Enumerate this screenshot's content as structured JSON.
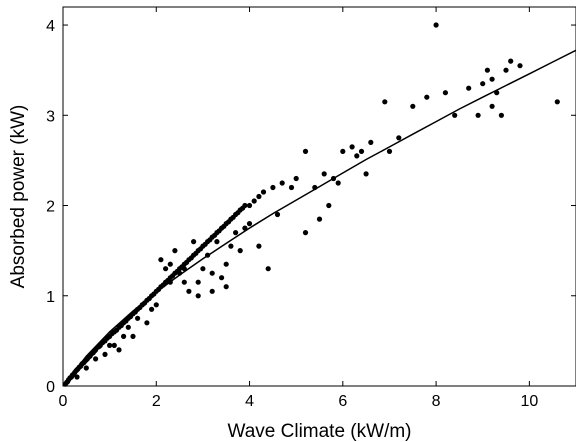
{
  "chart_data": {
    "type": "scatter",
    "title": "",
    "xlabel": "Wave Climate (kW/m)",
    "ylabel": "Absorbed power (kW)",
    "xlim": [
      0,
      11
    ],
    "ylim": [
      0,
      4.2
    ],
    "xticks": [
      0,
      2,
      4,
      6,
      8,
      10
    ],
    "yticks": [
      0,
      1,
      2,
      3,
      4
    ],
    "grid": false,
    "legend": "none",
    "colors": {
      "points": "#000000",
      "fit": "#000000",
      "axes": "#000000"
    },
    "series": [
      {
        "kind": "points",
        "x": [
          0.05,
          0.08,
          0.1,
          0.12,
          0.15,
          0.18,
          0.2,
          0.22,
          0.25,
          0.28,
          0.3,
          0.32,
          0.35,
          0.38,
          0.4,
          0.42,
          0.45,
          0.48,
          0.5,
          0.52,
          0.55,
          0.58,
          0.6,
          0.62,
          0.65,
          0.68,
          0.7,
          0.75,
          0.78,
          0.8,
          0.85,
          0.9,
          0.95,
          1.0,
          1.05,
          1.1,
          1.15,
          1.2,
          1.25,
          1.3,
          1.35,
          1.4,
          1.45,
          1.5,
          1.55,
          1.6,
          1.65,
          1.7,
          1.75,
          1.8,
          1.85,
          1.9,
          1.95,
          2.0,
          2.05,
          2.1,
          2.15,
          2.2,
          2.25,
          2.3,
          2.35,
          2.4,
          2.45,
          2.5,
          2.55,
          2.6,
          2.65,
          2.7,
          2.75,
          2.8,
          2.85,
          2.9,
          2.95,
          3.0,
          3.05,
          3.1,
          3.15,
          3.2,
          3.25,
          3.3,
          3.35,
          3.4,
          3.45,
          3.5,
          3.55,
          3.6,
          3.65,
          3.7,
          3.75,
          3.8,
          3.85,
          3.9,
          4.0,
          4.1,
          4.2,
          4.3,
          4.5,
          4.7,
          4.9,
          5.0,
          5.2,
          5.4,
          5.6,
          5.7,
          5.8,
          6.0,
          6.2,
          6.4,
          6.5,
          6.6,
          6.9,
          7.2,
          7.5,
          7.8,
          8.0,
          8.2,
          8.4,
          8.7,
          9.0,
          9.1,
          9.2,
          9.3,
          9.4,
          9.5,
          9.6,
          9.8,
          10.6,
          0.3,
          0.5,
          0.7,
          1.0,
          1.3,
          1.6,
          1.9,
          2.2,
          2.5,
          2.8,
          3.1,
          3.4,
          3.7,
          4.0,
          4.4,
          2.3,
          2.6,
          2.9,
          3.2,
          3.5,
          1.2,
          1.5,
          1.8,
          2.1,
          2.4,
          2.7,
          3.0,
          3.3,
          3.6,
          3.9,
          0.9,
          1.1,
          1.4,
          1.7,
          2.0,
          2.3,
          2.6,
          2.9,
          3.2,
          3.5,
          3.8,
          4.2,
          4.6,
          5.2,
          5.5,
          5.9,
          6.3,
          7.0,
          8.9,
          9.2
        ],
        "y": [
          0.02,
          0.04,
          0.05,
          0.07,
          0.09,
          0.1,
          0.12,
          0.13,
          0.15,
          0.17,
          0.18,
          0.19,
          0.21,
          0.22,
          0.24,
          0.25,
          0.26,
          0.28,
          0.29,
          0.3,
          0.32,
          0.33,
          0.35,
          0.36,
          0.37,
          0.39,
          0.4,
          0.43,
          0.44,
          0.45,
          0.48,
          0.5,
          0.53,
          0.55,
          0.58,
          0.6,
          0.62,
          0.65,
          0.67,
          0.7,
          0.72,
          0.75,
          0.77,
          0.8,
          0.82,
          0.85,
          0.87,
          0.9,
          0.92,
          0.95,
          0.97,
          1.0,
          1.02,
          1.05,
          1.07,
          1.1,
          1.12,
          1.15,
          1.17,
          1.2,
          1.22,
          1.25,
          1.27,
          1.3,
          1.32,
          1.35,
          1.37,
          1.4,
          1.42,
          1.45,
          1.47,
          1.5,
          1.52,
          1.55,
          1.57,
          1.6,
          1.62,
          1.65,
          1.67,
          1.7,
          1.72,
          1.75,
          1.77,
          1.8,
          1.82,
          1.85,
          1.87,
          1.9,
          1.92,
          1.95,
          1.97,
          2.0,
          2.0,
          2.05,
          2.1,
          2.15,
          2.2,
          2.25,
          2.2,
          2.3,
          2.6,
          2.2,
          2.35,
          2.0,
          2.3,
          2.6,
          2.65,
          2.6,
          2.35,
          2.7,
          3.15,
          2.75,
          3.1,
          3.2,
          4.0,
          3.25,
          3.0,
          3.3,
          3.35,
          3.5,
          3.4,
          3.25,
          3.0,
          3.5,
          3.6,
          3.55,
          3.15,
          0.1,
          0.2,
          0.3,
          0.45,
          0.55,
          0.75,
          0.85,
          1.3,
          1.25,
          1.6,
          1.45,
          1.2,
          1.7,
          1.8,
          1.3,
          1.35,
          1.15,
          1.0,
          1.05,
          1.1,
          0.4,
          0.55,
          0.7,
          1.4,
          1.5,
          1.05,
          1.3,
          1.6,
          1.55,
          1.75,
          0.35,
          0.45,
          0.65,
          0.9,
          0.9,
          1.15,
          1.3,
          1.15,
          1.25,
          1.35,
          1.5,
          1.55,
          1.9,
          1.7,
          1.85,
          2.25,
          2.55,
          2.6,
          3.0,
          3.1
        ]
      },
      {
        "kind": "fit-line",
        "x": [
          0,
          0.5,
          1,
          1.5,
          2,
          2.5,
          3,
          3.5,
          4,
          4.5,
          5,
          5.5,
          6,
          6.5,
          7,
          7.5,
          8,
          8.5,
          9,
          9.5,
          10,
          10.5,
          11
        ],
        "y": [
          0,
          0.33,
          0.6,
          0.83,
          1.04,
          1.23,
          1.41,
          1.58,
          1.75,
          1.91,
          2.06,
          2.21,
          2.36,
          2.51,
          2.65,
          2.79,
          2.93,
          3.07,
          3.2,
          3.33,
          3.46,
          3.59,
          3.72
        ]
      }
    ]
  }
}
